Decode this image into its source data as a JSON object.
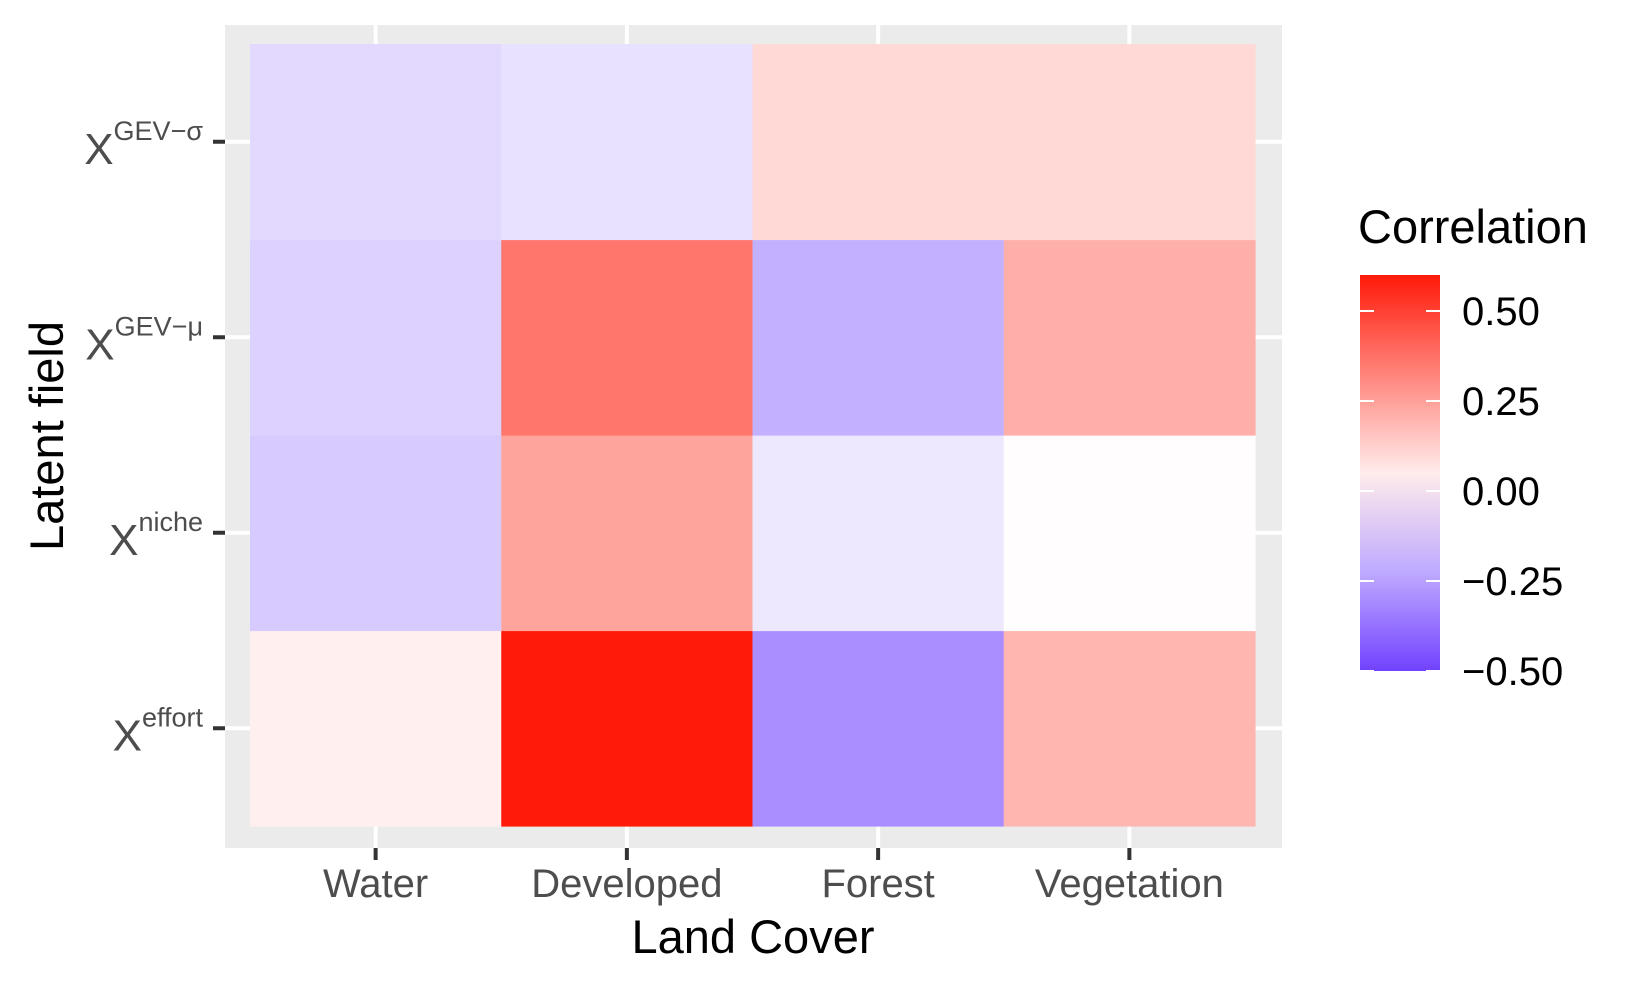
{
  "chart_data": {
    "type": "heatmap",
    "xlabel": "Land Cover",
    "ylabel": "Latent field",
    "x_categories": [
      "Water",
      "Developed",
      "Forest",
      "Vegetation"
    ],
    "y_categories": [
      {
        "base": "X",
        "sup": "effort"
      },
      {
        "base": "X",
        "sup": "niche"
      },
      {
        "base": "X",
        "sup": "GEV−μ"
      },
      {
        "base": "X",
        "sup": "GEV−σ"
      }
    ],
    "values": [
      [
        0.04,
        0.6,
        -0.3,
        0.19
      ],
      [
        -0.14,
        0.24,
        -0.06,
        0.005
      ],
      [
        -0.12,
        0.36,
        -0.21,
        0.21
      ],
      [
        -0.1,
        -0.08,
        0.1,
        0.1
      ]
    ],
    "grid": true,
    "legend": {
      "title": "Correlation",
      "position": "right",
      "breaks": [
        "0.50",
        "0.25",
        "0.00",
        "−0.25",
        "−0.50"
      ],
      "break_values": [
        0.5,
        0.25,
        0.0,
        -0.25,
        -0.5
      ],
      "range": [
        -0.5,
        0.6
      ]
    },
    "colors": {
      "low": "#7142ff",
      "mid": "#ffffff",
      "high": "#ff1a0a",
      "panel_background": "#ebebeb",
      "grid_lines": "#ffffff",
      "tick_marks": "#333333"
    }
  }
}
